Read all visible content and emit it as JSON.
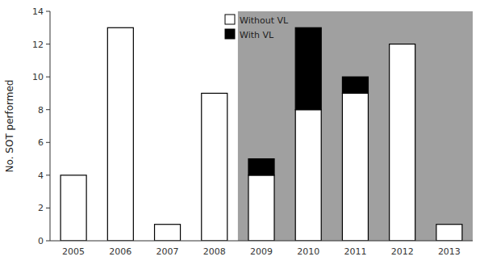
{
  "chart_data": {
    "type": "bar",
    "stacked": true,
    "ylabel": "No. SOT performed",
    "categories": [
      "2005",
      "2006",
      "2007",
      "2008",
      "2009",
      "2010",
      "2011",
      "2012",
      "2013"
    ],
    "series": [
      {
        "name": "Without VL",
        "color": "#ffffff",
        "values": [
          4,
          13,
          1,
          9,
          4,
          8,
          9,
          12,
          1
        ]
      },
      {
        "name": "With VL",
        "color": "#000000",
        "values": [
          0,
          0,
          0,
          0,
          1,
          5,
          1,
          0,
          0
        ]
      }
    ],
    "ylim": [
      0,
      14
    ],
    "yticks": [
      0,
      2,
      4,
      6,
      8,
      10,
      12,
      14
    ],
    "highlight": {
      "from": "2009",
      "color": "#a0a0a0"
    },
    "grid": false,
    "legend": "upper center"
  }
}
